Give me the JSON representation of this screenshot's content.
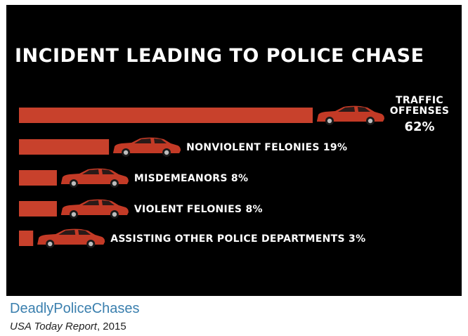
{
  "colors": {
    "background": "#000000",
    "bar": "#c8412c",
    "car_body": "#c33a26",
    "car_window": "#2a1a18",
    "text": "#ffffff",
    "link": "#3a7fae"
  },
  "chart_data": {
    "type": "bar",
    "orientation": "horizontal",
    "title": "INCIDENT LEADING TO POLICE CHASE",
    "categories": [
      "TRAFFIC OFFENSES",
      "NONVIOLENT FELONIES",
      "MISDEMEANORS",
      "VIOLENT FELONIES",
      "ASSISTING OTHER POLICE DEPARTMENTS"
    ],
    "values": [
      62,
      19,
      8,
      8,
      3
    ],
    "unit": "%",
    "labels": [
      {
        "lines": [
          "TRAFFIC",
          "OFFENSES"
        ],
        "value_text": "62%"
      },
      {
        "lines": [
          "NONVIOLENT FELONIES 19%"
        ]
      },
      {
        "lines": [
          "MISDEMEANORS 8%"
        ]
      },
      {
        "lines": [
          "VIOLENT FELONIES 8%"
        ]
      },
      {
        "lines": [
          "ASSISTING OTHER POLICE DEPARTMENTS 3%"
        ]
      }
    ],
    "xlabel": "",
    "ylabel": "",
    "grid": false,
    "icon": "car-icon"
  },
  "caption": {
    "link_text": "DeadlyPoliceChases",
    "source_title": "USA Today Report",
    "source_year": ", 2015"
  }
}
